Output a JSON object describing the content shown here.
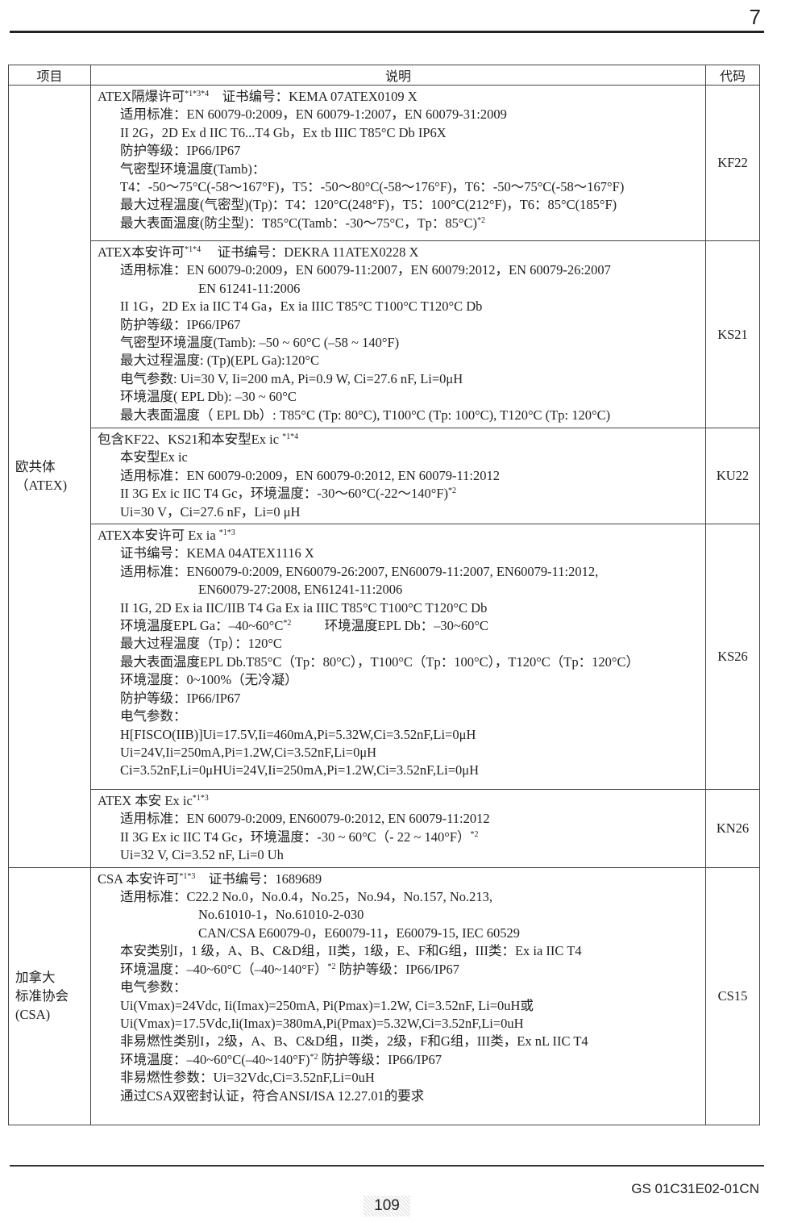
{
  "chapter": "7",
  "table": {
    "headers": [
      "项目",
      "说明",
      "代码"
    ],
    "groups": [
      {
        "label": [
          "欧共体",
          "（ATEX)"
        ],
        "rows": [
          {
            "code": "KF22",
            "lines": [
              {
                "i": 0,
                "s": [
                  {
                    "t": "ATEX隔爆许可"
                  },
                  {
                    "sup": "*1*3*4"
                  },
                  {
                    "t": "    证书编号：KEMA 07ATEX0109 X"
                  }
                ]
              },
              {
                "i": 1,
                "s": [
                  {
                    "t": "适用标准：EN 60079-0:2009，EN 60079-1:2007，EN 60079-31:2009"
                  }
                ]
              },
              {
                "i": 1,
                "s": [
                  {
                    "t": "II 2G，2D Ex d IIC T6...T4 Gb，Ex tb IIIC T85°C Db IP6X"
                  }
                ]
              },
              {
                "i": 1,
                "s": [
                  {
                    "t": "防护等级：IP66/IP67"
                  }
                ]
              },
              {
                "i": 1,
                "s": [
                  {
                    "t": "气密型环境温度(Tamb)："
                  }
                ]
              },
              {
                "i": 1,
                "s": [
                  {
                    "t": "T4：-50～75°C(-58～167°F)，T5：-50～80°C(-58～176°F)，T6：-50～75°C(-58～167°F)"
                  }
                ]
              },
              {
                "i": 1,
                "s": [
                  {
                    "t": "最大过程温度(气密型)(Tp)：T4：120°C(248°F)，T5：100°C(212°F)，T6：85°C(185°F)"
                  }
                ]
              },
              {
                "i": 1,
                "s": [
                  {
                    "t": "最大表面温度(防尘型)：T85°C(Tamb：-30～75°C，Tp：85°C)"
                  },
                  {
                    "sup": "*2"
                  }
                ]
              }
            ]
          },
          {
            "code": "KS21",
            "lines": [
              {
                "i": 0,
                "s": [
                  {
                    "t": "ATEX本安许可"
                  },
                  {
                    "sup": "*1*4"
                  },
                  {
                    "t": "     证书编号：DEKRA 11ATEX0228 X"
                  }
                ]
              },
              {
                "i": 1,
                "s": [
                  {
                    "t": "适用标准：EN 60079-0:2009，EN 60079-11:2007，EN 60079:2012，EN 60079-26:2007"
                  }
                ]
              },
              {
                "i": 2,
                "s": [
                  {
                    "t": "EN 61241-11:2006"
                  }
                ]
              },
              {
                "i": 1,
                "s": [
                  {
                    "t": "II 1G，2D Ex ia IIC T4 Ga，Ex ia IIIC T85°C T100°C T120°C Db"
                  }
                ]
              },
              {
                "i": 1,
                "s": [
                  {
                    "t": "防护等级：IP66/IP67"
                  }
                ]
              },
              {
                "i": 1,
                "s": [
                  {
                    "t": "气密型环境温度(Tamb): –50 ~ 60°C (–58 ~ 140°F)"
                  }
                ]
              },
              {
                "i": 1,
                "s": [
                  {
                    "t": "最大过程温度: (Tp)(EPL Ga):120°C"
                  }
                ]
              },
              {
                "i": 1,
                "s": [
                  {
                    "t": "电气参数: Ui=30 V, Ii=200 mA, Pi=0.9 W, Ci=27.6 nF, Li=0μH"
                  }
                ]
              },
              {
                "i": 1,
                "s": [
                  {
                    "t": "环境温度( EPL Db): –30 ~ 60°C"
                  }
                ]
              },
              {
                "i": 1,
                "s": [
                  {
                    "t": "最大表面温度（ EPL Db）: T85°C (Tp: 80°C), T100°C (Tp: 100°C), T120°C (Tp: 120°C)"
                  }
                ]
              }
            ]
          },
          {
            "code": "KU22",
            "lines": [
              {
                "i": 0,
                "s": [
                  {
                    "t": "包含KF22、KS21和本安型Ex ic "
                  },
                  {
                    "sup": "*1*4"
                  }
                ]
              },
              {
                "i": 1,
                "s": [
                  {
                    "t": "本安型Ex ic"
                  }
                ]
              },
              {
                "i": 1,
                "s": [
                  {
                    "t": "适用标准：EN 60079-0:2009，EN 60079-0:2012, EN 60079-11:2012"
                  }
                ]
              },
              {
                "i": 1,
                "s": [
                  {
                    "t": "II 3G Ex ic IIC T4 Gc，环境温度：-30～60°C(-22～140°F)"
                  },
                  {
                    "sup": "*2"
                  }
                ]
              },
              {
                "i": 1,
                "s": [
                  {
                    "t": "Ui=30 V，Ci=27.6 nF，Li=0 μH"
                  }
                ]
              }
            ]
          },
          {
            "code": "KS26",
            "lines": [
              {
                "i": 0,
                "s": [
                  {
                    "t": "ATEX本安许可 Ex ia "
                  },
                  {
                    "sup": "*1*3"
                  }
                ]
              },
              {
                "i": 1,
                "s": [
                  {
                    "t": "证书编号：KEMA 04ATEX1116 X"
                  }
                ]
              },
              {
                "i": 1,
                "s": [
                  {
                    "t": "适用标准：EN60079-0:2009, EN60079-26:2007, EN60079-11:2007, EN60079-11:2012,"
                  }
                ]
              },
              {
                "i": 2,
                "s": [
                  {
                    "t": "EN60079-27:2008, EN61241-11:2006"
                  }
                ]
              },
              {
                "i": 1,
                "s": [
                  {
                    "t": "II 1G, 2D Ex ia IIC/IIB T4 Ga Ex ia IIIC T85°C T100°C T120°C Db"
                  }
                ]
              },
              {
                "i": 1,
                "s": [
                  {
                    "t": "环境温度EPL Ga：–40~60°C"
                  },
                  {
                    "sup": "*2"
                  },
                  {
                    "t": "          环境温度EPL Db：–30~60°C"
                  }
                ]
              },
              {
                "i": 1,
                "s": [
                  {
                    "t": "最大过程温度（Tp）：120°C"
                  }
                ]
              },
              {
                "i": 1,
                "s": [
                  {
                    "t": "最大表面温度EPL Db.T85°C（Tp：80°C），T100°C（Tp：100°C），T120°C（Tp：120°C）"
                  }
                ]
              },
              {
                "i": 1,
                "s": [
                  {
                    "t": "环境湿度：0~100%（无冷凝）"
                  }
                ]
              },
              {
                "i": 1,
                "s": [
                  {
                    "t": "防护等级：IP66/IP67"
                  }
                ]
              },
              {
                "i": 1,
                "s": [
                  {
                    "t": "电气参数："
                  }
                ]
              },
              {
                "i": 1,
                "s": [
                  {
                    "t": "H[FISCO(IIB)]Ui=17.5V,Ii=460mA,Pi=5.32W,Ci=3.52nF,Li=0μH"
                  }
                ]
              },
              {
                "i": 1,
                "s": [
                  {
                    "t": "Ui=24V,Ii=250mA,Pi=1.2W,Ci=3.52nF,Li=0μH"
                  }
                ]
              },
              {
                "i": 1,
                "s": [
                  {
                    "t": "Ci=3.52nF,Li=0μHUi=24V,Ii=250mA,Pi=1.2W,Ci=3.52nF,Li=0μH"
                  }
                ]
              }
            ]
          },
          {
            "code": "KN26",
            "lines": [
              {
                "i": 0,
                "s": [
                  {
                    "t": "ATEX 本安 Ex ic"
                  },
                  {
                    "sup": "*1*3"
                  }
                ]
              },
              {
                "i": 1,
                "s": [
                  {
                    "t": "适用标准：EN 60079-0:2009, EN60079-0:2012, EN 60079-11:2012"
                  }
                ]
              },
              {
                "i": 1,
                "s": [
                  {
                    "t": "II 3G Ex ic IIC T4 Gc，环境温度：-30 ~ 60°C（- 22 ~ 140°F）"
                  },
                  {
                    "sup": "*2"
                  }
                ]
              },
              {
                "i": 1,
                "s": [
                  {
                    "t": "Ui=32 V, Ci=3.52 nF, Li=0 Uh"
                  }
                ]
              }
            ]
          }
        ]
      },
      {
        "label": [
          "加拿大",
          "标准协会",
          "(CSA)"
        ],
        "rows": [
          {
            "code": "CS15",
            "lines": [
              {
                "i": 0,
                "s": [
                  {
                    "t": "CSA 本安许可"
                  },
                  {
                    "sup": "*1*3"
                  },
                  {
                    "t": "    证书编号：1689689"
                  }
                ]
              },
              {
                "i": 1,
                "s": [
                  {
                    "t": "适用标准：C22.2 No.0，No.0.4，No.25，No.94，No.157, No.213,"
                  }
                ]
              },
              {
                "i": 2,
                "s": [
                  {
                    "t": "No.61010-1，No.61010-2-030"
                  }
                ]
              },
              {
                "i": 2,
                "s": [
                  {
                    "t": "CAN/CSA E60079-0，E60079-11，E60079-15, IEC 60529"
                  }
                ]
              },
              {
                "i": 1,
                "s": [
                  {
                    "t": "本安类别I，1 级，A、B、C&D组，II类，1级，E、F和G组，III类：Ex ia IIC T4"
                  }
                ]
              },
              {
                "i": 1,
                "s": [
                  {
                    "t": "环境温度：–40~60°C（–40~140°F）"
                  },
                  {
                    "sup": "*2"
                  },
                  {
                    "t": " 防护等级：IP66/IP67"
                  }
                ]
              },
              {
                "i": 1,
                "s": [
                  {
                    "t": "电气参数："
                  }
                ]
              },
              {
                "i": 1,
                "s": [
                  {
                    "t": "Ui(Vmax)=24Vdc, Ii(Imax)=250mA, Pi(Pmax)=1.2W, Ci=3.52nF, Li=0uH或"
                  }
                ]
              },
              {
                "i": 1,
                "s": [
                  {
                    "t": "Ui(Vmax)=17.5Vdc,Ii(Imax)=380mA,Pi(Pmax)=5.32W,Ci=3.52nF,Li=0uH"
                  }
                ]
              },
              {
                "i": 1,
                "s": [
                  {
                    "t": "非易燃性类别I，2级，A、B、C&D组，II类，2级，F和G组，III类，Ex nL IIC T4"
                  }
                ]
              },
              {
                "i": 1,
                "s": [
                  {
                    "t": "环境温度：–40~60°C(–40~140°F)"
                  },
                  {
                    "sup": "*2"
                  },
                  {
                    "t": " 防护等级：IP66/IP67"
                  }
                ]
              },
              {
                "i": 1,
                "s": [
                  {
                    "t": "非易燃性参数：Ui=32Vdc,Ci=3.52nF,Li=0uH"
                  }
                ]
              },
              {
                "i": 1,
                "s": [
                  {
                    "t": "通过CSA双密封认证，符合ANSI/ISA 12.27.01的要求"
                  }
                ]
              }
            ]
          }
        ]
      }
    ]
  },
  "footer": {
    "page_number": "109",
    "doc_id": "GS 01C31E02-01CN"
  }
}
